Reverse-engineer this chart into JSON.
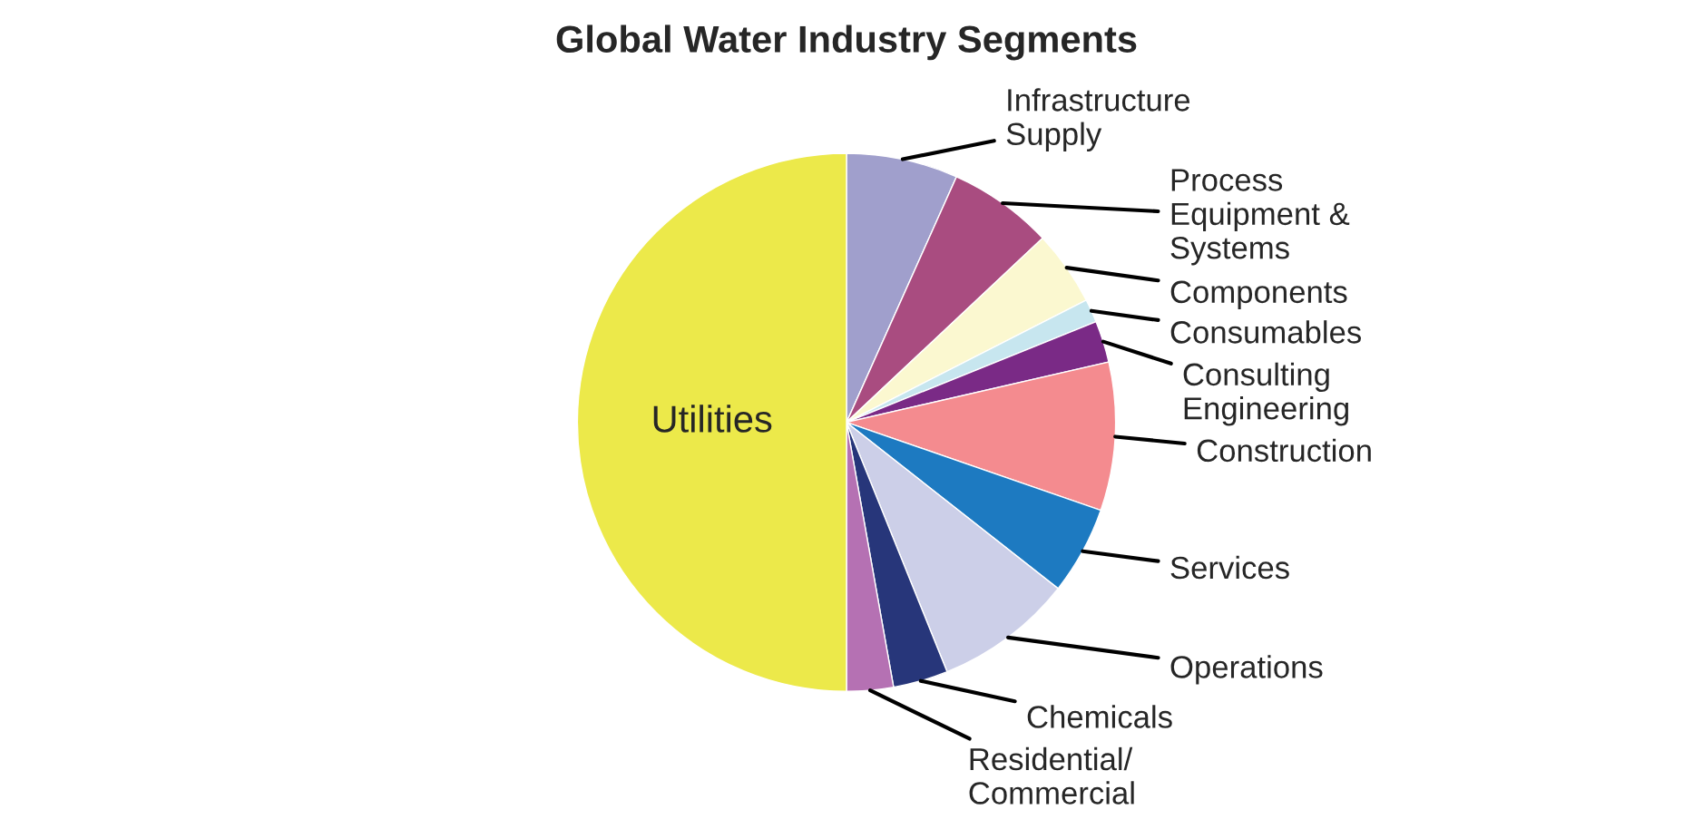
{
  "chart_data": {
    "type": "pie",
    "title": "Global Water Industry Segments",
    "categories": [
      "Infrastructure\nSupply",
      "Process\nEquipment &\nSystems",
      "Components",
      "Consumables",
      "Consulting\nEngineering",
      "Construction",
      "Services",
      "Operations",
      "Chemicals",
      "Residential/\nCommercial",
      "Utilities"
    ],
    "values": [
      6.7,
      6.3,
      4.5,
      1.4,
      2.5,
      8.9,
      5.3,
      8.3,
      3.3,
      2.8,
      50
    ],
    "colors": [
      "#a09fcc",
      "#a94c80",
      "#fbf8d0",
      "#c7e6ef",
      "#7a2a86",
      "#f48b8f",
      "#1d7ac1",
      "#cccfe8",
      "#27367a",
      "#b571b3",
      "#ece94a"
    ],
    "legend": false
  }
}
